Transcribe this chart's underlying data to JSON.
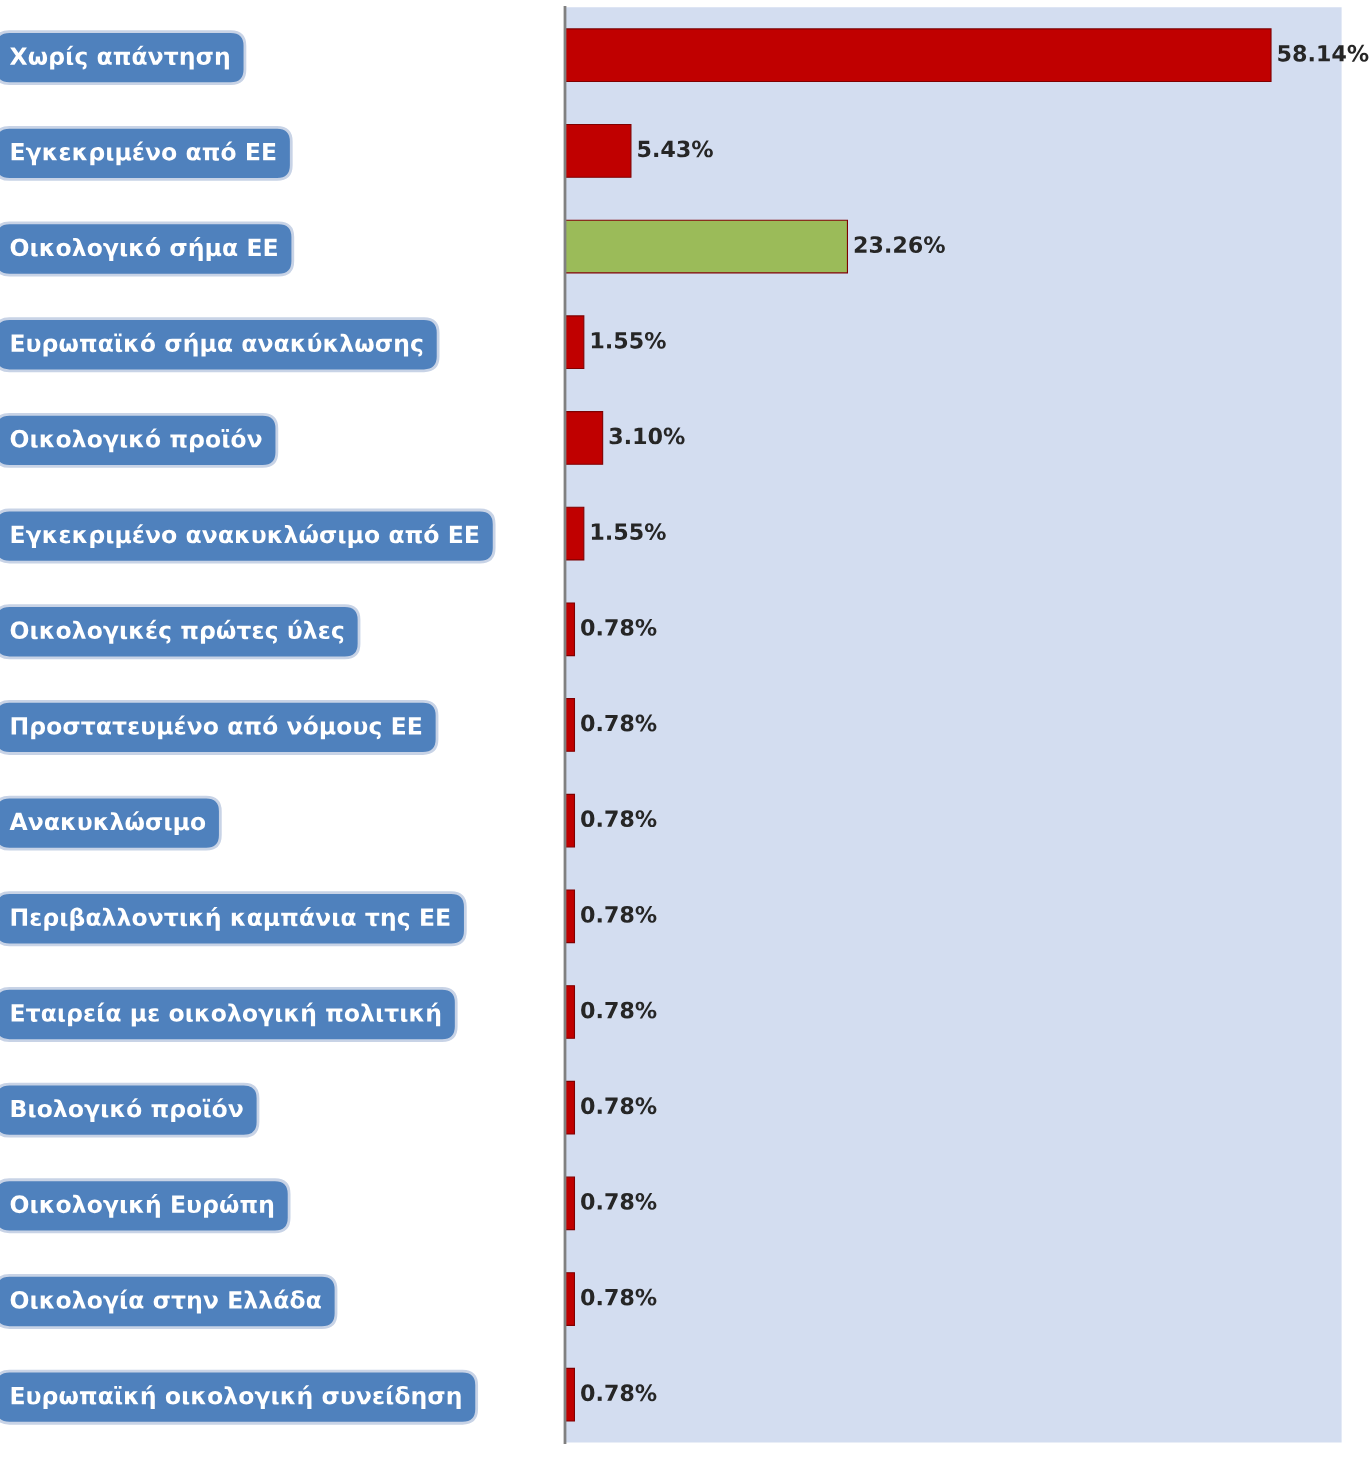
{
  "chart_data": {
    "type": "bar",
    "orientation": "horizontal",
    "tick_labels": "y",
    "grid": false,
    "categories": [
      "Χωρίς απάντηση",
      "Εγκεκριμένο από ΕΕ",
      "Οικολογικό σήμα ΕΕ",
      "Ευρωπαϊκό σήμα ανακύκλωσης",
      "Οικολογικό προϊόν",
      "Εγκεκριμένο ανακυκλώσιμο από ΕΕ",
      "Οικολογικές πρώτες ύλες",
      "Προστατευμένο από νόμους ΕΕ",
      "Ανακυκλώσιμο",
      "Περιβαλλοντική καμπάνια της ΕΕ",
      "Εταιρεία με οικολογική πολιτική",
      "Βιολογικό προϊόν",
      "Οικολογική Ευρώπη",
      "Οικολογία στην Ελλάδα",
      "Ευρωπαϊκή οικολογική συνείδηση"
    ],
    "values": [
      58.14,
      5.43,
      23.26,
      1.55,
      3.1,
      1.55,
      0.78,
      0.78,
      0.78,
      0.78,
      0.78,
      0.78,
      0.78,
      0.78,
      0.78
    ],
    "colors": [
      "#c00000",
      "#c00000",
      "#9bbb59",
      "#c00000",
      "#c00000",
      "#c00000",
      "#c00000",
      "#c00000",
      "#c00000",
      "#c00000",
      "#c00000",
      "#c00000",
      "#c00000",
      "#c00000",
      "#c00000"
    ],
    "value_labels": [
      "58.14%",
      "5.43%",
      "23.26%",
      "1.55%",
      "3.10%",
      "1.55%",
      "0.78%",
      "0.78%",
      "0.78%",
      "0.78%",
      "0.78%",
      "0.78%",
      "0.78%",
      "0.78%",
      "0.78%"
    ]
  }
}
